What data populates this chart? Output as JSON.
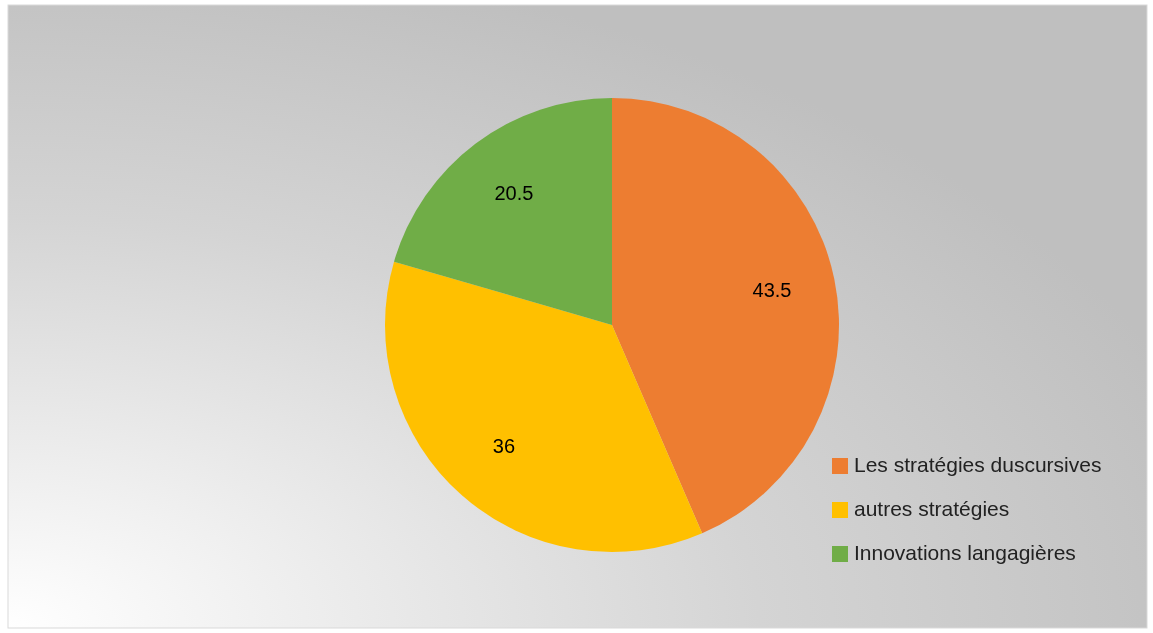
{
  "chart_data": {
    "type": "pie",
    "categories": [
      "Les stratégies duscursives",
      "autres stratégies",
      "Innovations langagières"
    ],
    "values": [
      43.5,
      36,
      20.5
    ],
    "colors": [
      "#ed7d31",
      "#ffc000",
      "#70ad47"
    ],
    "data_labels": true,
    "legend": "bottom right"
  }
}
